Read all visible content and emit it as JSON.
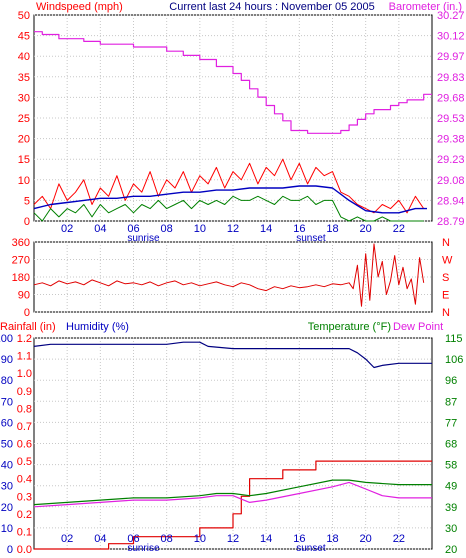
{
  "header": {
    "title": "Current last 24 hours : November 05 2005",
    "left_label": "Windspeed (mph)",
    "right_label": "Barometer (in.)"
  },
  "colors": {
    "wind_speed": "#ff0000",
    "wind_avg": "#0000c0",
    "wind_low": "#008000",
    "barometer": "#e020e0",
    "direction": "#e00000",
    "rainfall": "#e00000",
    "humidity": "#000080",
    "temperature": "#008000",
    "dewpoint": "#e020e0",
    "axis_red": "#ff0000",
    "axis_magenta": "#e020e0",
    "axis_blue": "#0000c0",
    "axis_green": "#008000",
    "axis_black": "#000000"
  },
  "x_axis": {
    "ticks": [
      "02",
      "04",
      "06",
      "08",
      "10",
      "12",
      "14",
      "16",
      "18",
      "20",
      "22"
    ],
    "tick_hours": [
      2,
      4,
      6,
      8,
      10,
      12,
      14,
      16,
      18,
      20,
      22
    ],
    "sunrise_label": "sunrise",
    "sunrise_hour": 6.6,
    "sunset_label": "sunset",
    "sunset_hour": 16.7,
    "range": [
      0,
      24
    ]
  },
  "chart_data": [
    {
      "type": "line",
      "panel": "wind-barometer",
      "x_range": [
        0,
        24
      ],
      "left_axis": {
        "label": "Windspeed (mph)",
        "ticks": [
          "50",
          "45",
          "40",
          "35",
          "30",
          "25",
          "20",
          "15",
          "10",
          "5",
          "0"
        ],
        "range": [
          0,
          50
        ]
      },
      "right_axis": {
        "label": "Barometer (in.)",
        "ticks": [
          "30.27",
          "30.12",
          "29.97",
          "29.83",
          "29.68",
          "29.53",
          "29.38",
          "29.23",
          "29.08",
          "28.94",
          "28.79"
        ],
        "range": [
          28.79,
          30.27
        ]
      },
      "series": [
        {
          "name": "Barometer (in.)",
          "axis": "right",
          "x": [
            0,
            0.5,
            0.5,
            1.5,
            1.5,
            3,
            3,
            4,
            4,
            6,
            6,
            8,
            8,
            9,
            9,
            10,
            10,
            11,
            11,
            12,
            12,
            12.5,
            12.5,
            13,
            13,
            13.5,
            13.5,
            14,
            14,
            14.5,
            14.5,
            15,
            15,
            15.5,
            15.5,
            16.5,
            16.5,
            18.5,
            18.5,
            19,
            19,
            19.5,
            19.5,
            20,
            20,
            20.5,
            20.5,
            21.5,
            21.5,
            22,
            22,
            22.5,
            22.5,
            23.5,
            23.5,
            24
          ],
          "y": [
            30.15,
            30.15,
            30.13,
            30.13,
            30.1,
            30.1,
            30.08,
            30.08,
            30.06,
            30.06,
            30.04,
            30.04,
            30.01,
            30.01,
            29.98,
            29.98,
            29.95,
            29.95,
            29.9,
            29.9,
            29.85,
            29.85,
            29.8,
            29.8,
            29.74,
            29.74,
            29.68,
            29.68,
            29.62,
            29.62,
            29.56,
            29.56,
            29.51,
            29.51,
            29.44,
            29.44,
            29.42,
            29.42,
            29.44,
            29.44,
            29.48,
            29.48,
            29.52,
            29.52,
            29.56,
            29.56,
            29.59,
            29.59,
            29.62,
            29.62,
            29.64,
            29.64,
            29.66,
            29.66,
            29.7,
            29.7
          ]
        },
        {
          "name": "Windspeed",
          "axis": "left",
          "x": [
            0,
            0.5,
            1,
            1.5,
            2,
            2.5,
            3,
            3.5,
            4,
            4.5,
            5,
            5.5,
            6,
            6.5,
            7,
            7.5,
            8,
            8.5,
            9,
            9.5,
            10,
            10.5,
            11,
            11.5,
            12,
            12.5,
            13,
            13.5,
            14,
            14.5,
            15,
            15.5,
            16,
            16.5,
            17,
            17.5,
            18,
            18.5,
            19,
            19.5,
            20,
            20.5,
            21,
            21.5,
            22,
            22.5,
            23,
            23.5
          ],
          "y": [
            4,
            6,
            3,
            9,
            5,
            7,
            10,
            4,
            8,
            6,
            11,
            5,
            9,
            7,
            12,
            6,
            10,
            8,
            12,
            7,
            11,
            9,
            13,
            8,
            12,
            10,
            14,
            9,
            13,
            11,
            15,
            10,
            14,
            9,
            13,
            11,
            12,
            7,
            6,
            4,
            3,
            2,
            4,
            3,
            5,
            2,
            6,
            3
          ]
        },
        {
          "name": "Average",
          "axis": "left",
          "x": [
            0,
            1,
            2,
            3,
            4,
            5,
            6,
            7,
            8,
            9,
            10,
            11,
            12,
            13,
            14,
            15,
            16,
            17,
            18,
            19,
            20,
            21,
            22,
            23,
            23.7
          ],
          "y": [
            3,
            4,
            4.5,
            5,
            5.5,
            5.5,
            6,
            6,
            6.5,
            7,
            7,
            7.5,
            7.5,
            8,
            8,
            8,
            8.5,
            8.5,
            8,
            5,
            2.5,
            2,
            2,
            3,
            3
          ]
        },
        {
          "name": "Low",
          "axis": "left",
          "x": [
            0,
            0.5,
            1,
            1.5,
            2,
            2.5,
            3,
            3.5,
            4,
            4.5,
            5,
            5.5,
            6,
            6.5,
            7,
            7.5,
            8,
            8.5,
            9,
            9.5,
            10,
            10.5,
            11,
            11.5,
            12,
            12.5,
            13,
            13.5,
            14,
            14.5,
            15,
            15.5,
            16,
            16.5,
            17,
            17.5,
            18,
            18.5,
            19,
            19.5,
            20,
            20.5,
            21,
            21.5,
            22,
            22.5,
            23,
            23.5
          ],
          "y": [
            2,
            0,
            3,
            1,
            3,
            2,
            4,
            1,
            4,
            2,
            3,
            4,
            2,
            4,
            3,
            5,
            3,
            4,
            5,
            3,
            5,
            4,
            5,
            4,
            6,
            5,
            5,
            6,
            5,
            4,
            6,
            5,
            5,
            6,
            4,
            5,
            5,
            1,
            0,
            1,
            0,
            0,
            1,
            0,
            0,
            0,
            0,
            0
          ]
        }
      ]
    },
    {
      "type": "line",
      "panel": "wind-direction",
      "x_range": [
        0,
        24
      ],
      "left_axis": {
        "ticks": [
          "360",
          "270",
          "180",
          "90",
          "0"
        ],
        "range": [
          0,
          360
        ]
      },
      "right_axis": {
        "ticks": [
          "N",
          "W",
          "S",
          "E",
          "N"
        ]
      },
      "series": [
        {
          "name": "Wind direction",
          "axis": "left",
          "x": [
            0,
            0.5,
            1,
            1.5,
            2,
            2.5,
            3,
            3.5,
            4,
            4.5,
            5,
            5.5,
            6,
            6.5,
            7,
            7.5,
            8,
            8.5,
            9,
            9.5,
            10,
            10.5,
            11,
            11.5,
            12,
            12.5,
            13,
            13.5,
            14,
            14.5,
            15,
            15.5,
            16,
            16.5,
            17,
            17.5,
            18,
            18.5,
            19,
            19.25,
            19.5,
            19.75,
            20,
            20.25,
            20.5,
            20.75,
            21,
            21.25,
            21.5,
            21.75,
            22,
            22.25,
            22.5,
            22.75,
            23,
            23.25,
            23.5
          ],
          "y": [
            140,
            150,
            135,
            160,
            145,
            155,
            140,
            165,
            150,
            135,
            160,
            145,
            150,
            140,
            155,
            135,
            150,
            160,
            140,
            150,
            135,
            145,
            155,
            140,
            130,
            150,
            140,
            120,
            110,
            130,
            120,
            135,
            125,
            130,
            140,
            130,
            145,
            140,
            150,
            120,
            240,
            30,
            300,
            60,
            350,
            180,
            260,
            90,
            160,
            290,
            140,
            230,
            120,
            170,
            40,
            280,
            150
          ]
        }
      ]
    },
    {
      "type": "line",
      "panel": "rain-humidity-temperature",
      "x_range": [
        0,
        24
      ],
      "axes": {
        "rainfall": {
          "label": "Rainfall (in)",
          "ticks": [
            "1.2",
            "1.1",
            "1.0",
            "0.9",
            "0.8",
            "0.7",
            "0.6",
            "0.5",
            "0.4",
            "0.3",
            "0.2",
            "0.1",
            "0.0"
          ],
          "range": [
            0,
            1.2
          ]
        },
        "humidity": {
          "label": "Humidity (%)",
          "ticks": [
            "100",
            "90",
            "80",
            "70",
            "60",
            "50",
            "40",
            "30",
            "20",
            "10",
            "0"
          ],
          "range": [
            0,
            100
          ]
        },
        "temperature": {
          "label": "Temperature (°F)",
          "ticks": [
            "115",
            "106",
            "96",
            "87",
            "77",
            "68",
            "58",
            "49",
            "39",
            "30",
            "20"
          ],
          "range": [
            20,
            115
          ]
        },
        "dewpoint_label": "Dew Point"
      },
      "series": [
        {
          "name": "Humidity",
          "axis": "humidity",
          "x": [
            0,
            1,
            2,
            4,
            6,
            8,
            9,
            10,
            10.5,
            12,
            14,
            16,
            18,
            19,
            19.5,
            20,
            20.5,
            21,
            22,
            23,
            24
          ],
          "y": [
            96,
            97,
            97,
            97,
            97,
            97,
            98,
            98,
            96,
            95,
            95,
            95,
            95,
            95,
            93,
            90,
            86,
            87,
            88,
            88,
            88
          ]
        },
        {
          "name": "Rainfall",
          "axis": "rainfall",
          "x": [
            0,
            4.5,
            4.5,
            6,
            6,
            10,
            10,
            12,
            12,
            12.5,
            12.5,
            13,
            13,
            15,
            15,
            17,
            17,
            24
          ],
          "y": [
            0,
            0,
            0.03,
            0.03,
            0.07,
            0.07,
            0.12,
            0.12,
            0.2,
            0.2,
            0.3,
            0.3,
            0.4,
            0.4,
            0.45,
            0.45,
            0.5,
            0.5
          ]
        },
        {
          "name": "Temperature (°F)",
          "axis": "temperature",
          "x": [
            0,
            2,
            4,
            6,
            8,
            10,
            11,
            12,
            13,
            14,
            16,
            18,
            19,
            20,
            22,
            24
          ],
          "y": [
            40,
            41,
            42,
            43,
            43,
            44,
            45,
            45,
            44,
            45,
            48,
            51,
            51,
            50,
            49,
            49
          ]
        },
        {
          "name": "Dew Point",
          "axis": "temperature",
          "x": [
            0,
            2,
            4,
            6,
            8,
            10,
            11,
            12,
            13,
            14,
            16,
            18,
            19,
            20,
            21,
            22,
            24
          ],
          "y": [
            39,
            40,
            41,
            42,
            42,
            43,
            44,
            44,
            41,
            42,
            45,
            48,
            50,
            47,
            44,
            43,
            43
          ]
        }
      ]
    }
  ]
}
